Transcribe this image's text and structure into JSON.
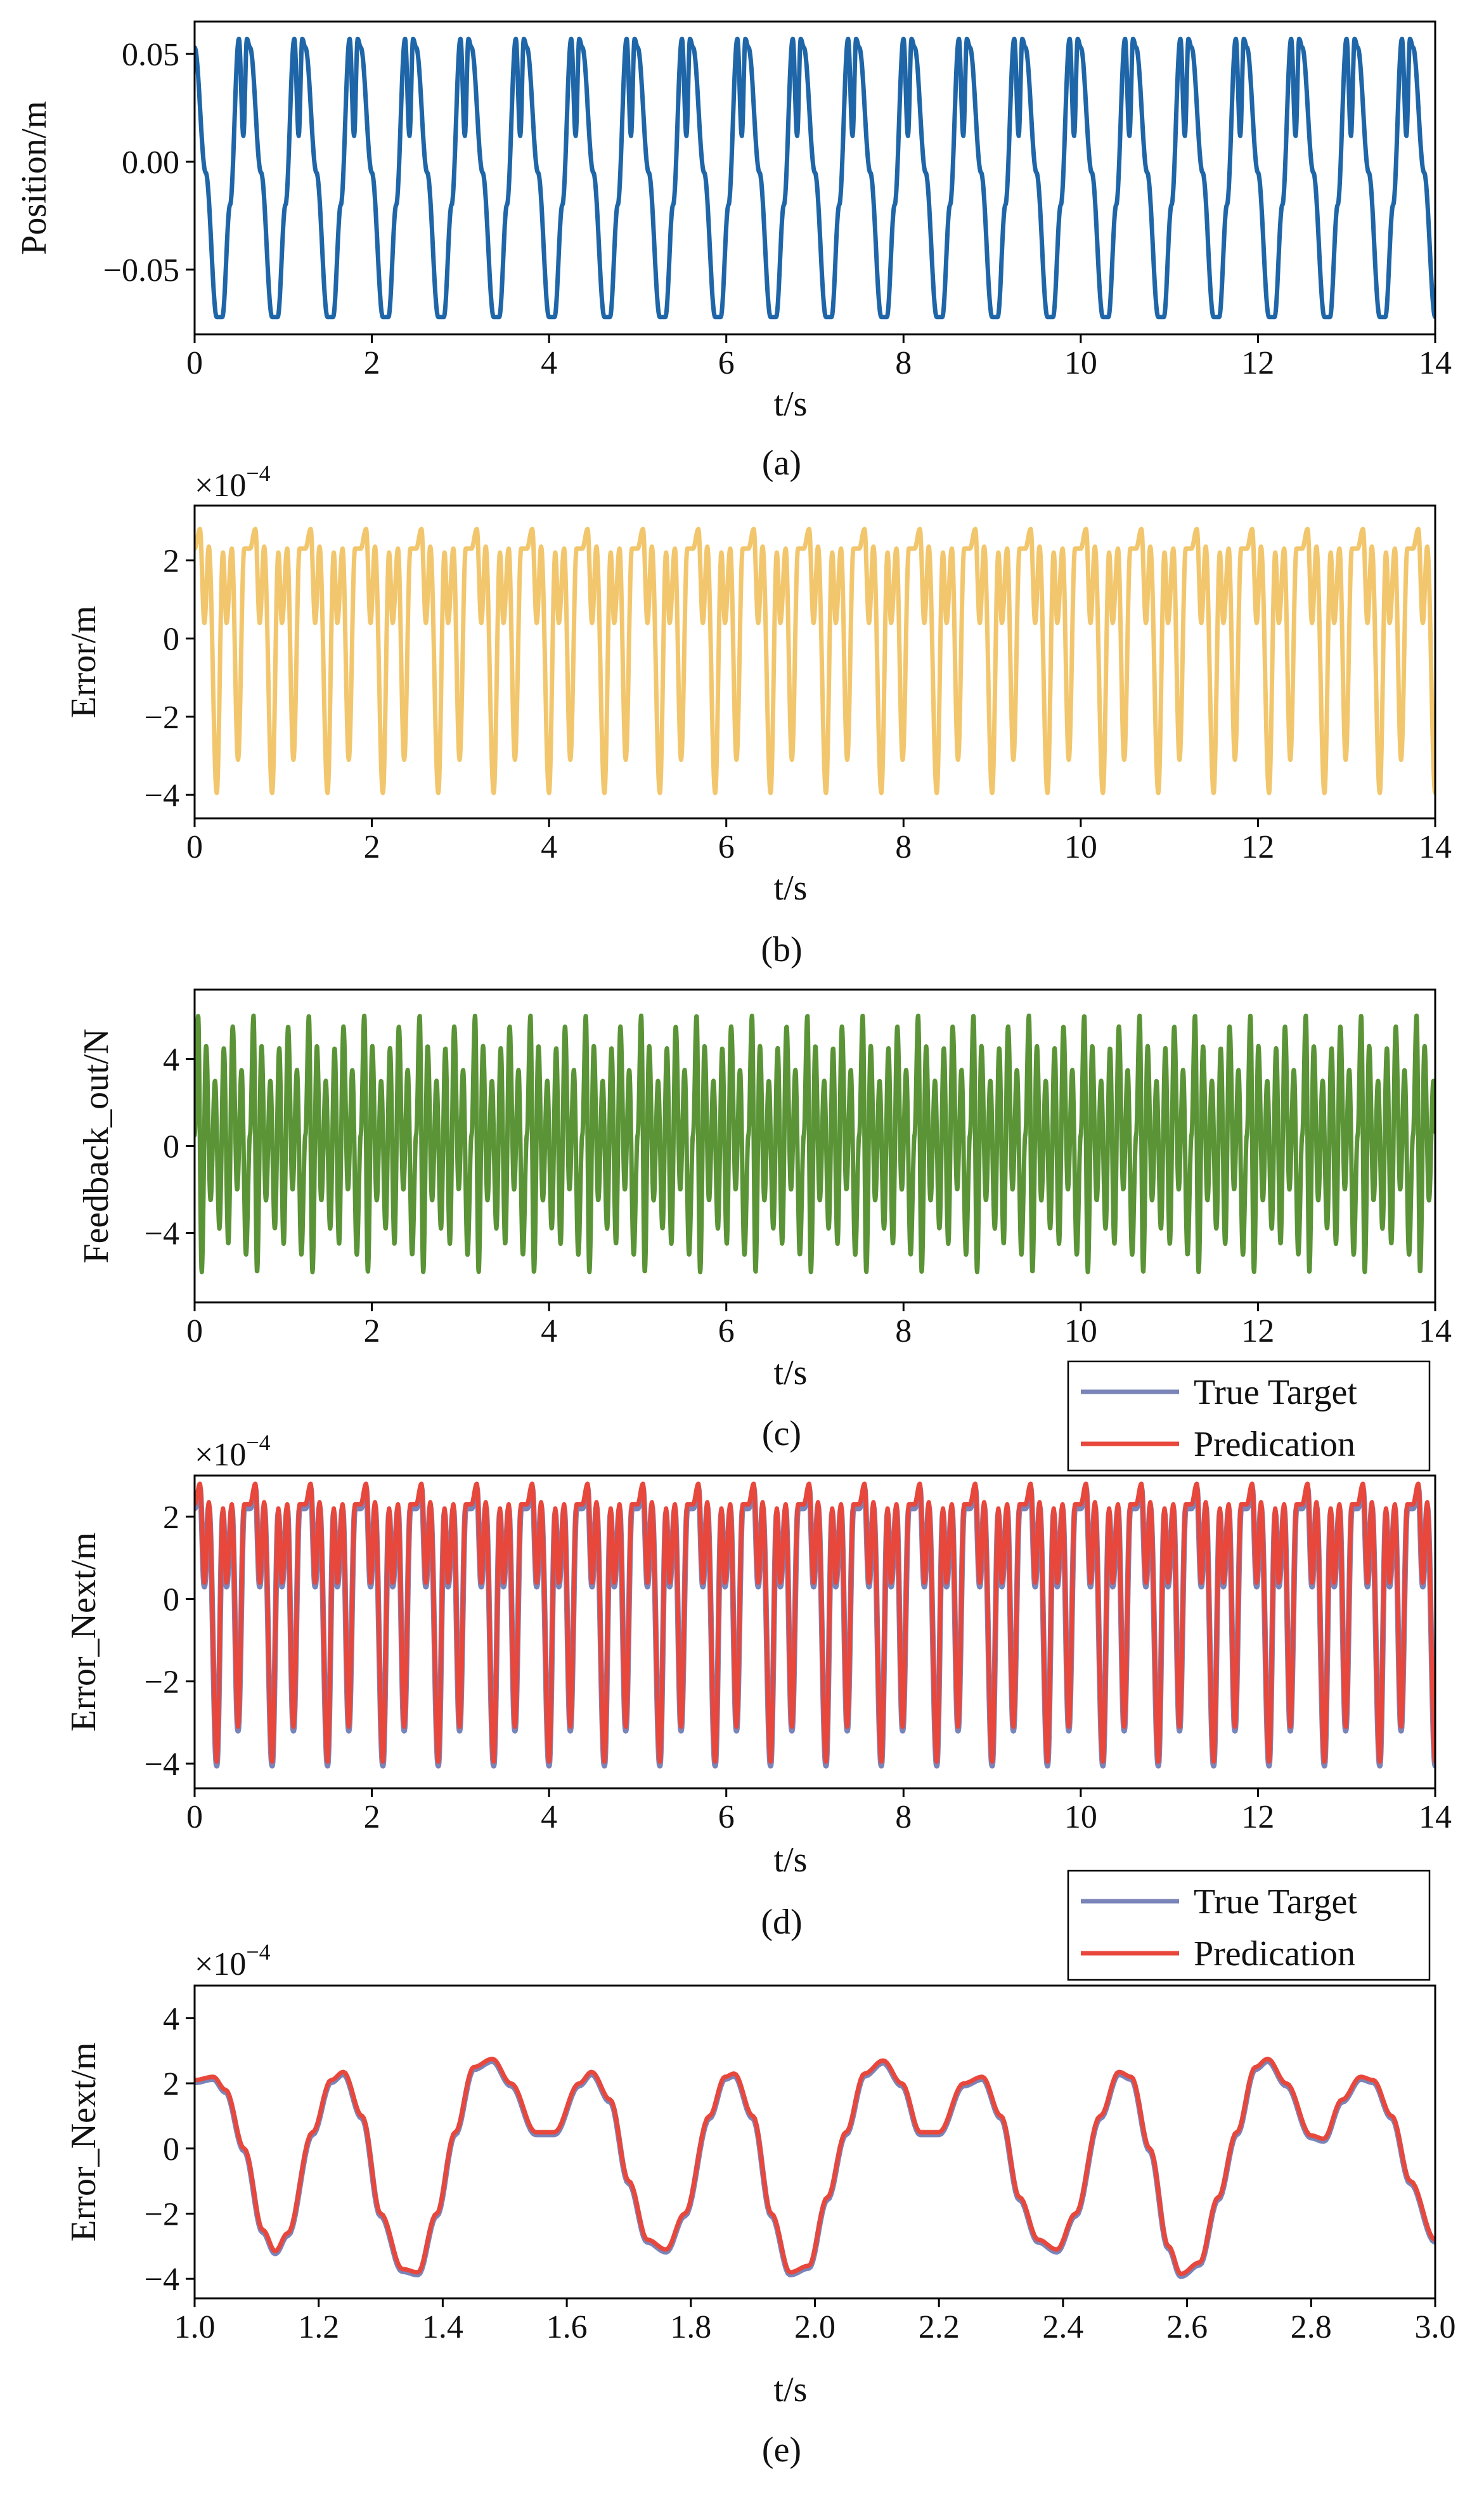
{
  "chart_data": [
    {
      "id": "a",
      "type": "line",
      "caption": "(a)",
      "xlabel": "t/s",
      "ylabel": "Position/m",
      "xlim": [
        0,
        14
      ],
      "ylim": [
        -0.08,
        0.065
      ],
      "xticks": [
        0,
        2,
        4,
        6,
        8,
        10,
        12,
        14
      ],
      "xtick_labels": [
        "0",
        "2",
        "4",
        "6",
        "8",
        "10",
        "12",
        "14"
      ],
      "yticks": [
        -0.05,
        0.0,
        0.05
      ],
      "ytick_labels": [
        "−0.05",
        "0.00",
        "0.05"
      ],
      "exponent": null,
      "legend": null,
      "waveform": {
        "period": 0.625,
        "extrema": [
          [
            0.0,
            0.053
          ],
          [
            0.125,
            -0.005
          ],
          [
            0.25,
            -0.072
          ],
          [
            0.3125,
            -0.072
          ],
          [
            0.4,
            -0.02
          ],
          [
            0.5,
            0.057
          ],
          [
            0.55,
            0.012
          ],
          [
            0.59,
            0.057
          ],
          [
            0.625,
            0.053
          ]
        ]
      },
      "series": [
        {
          "name": "Position",
          "color": "#1f66a8",
          "sample_step": 0.005
        }
      ]
    },
    {
      "id": "b",
      "type": "line",
      "caption": "(b)",
      "xlabel": "t/s",
      "ylabel": "Error/m",
      "xlim": [
        0,
        14
      ],
      "ylim": [
        -4.6,
        3.4
      ],
      "xticks": [
        0,
        2,
        4,
        6,
        8,
        10,
        12,
        14
      ],
      "xtick_labels": [
        "0",
        "2",
        "4",
        "6",
        "8",
        "10",
        "12",
        "14"
      ],
      "yticks": [
        -4,
        -2,
        0,
        2
      ],
      "ytick_labels": [
        "−4",
        "−2",
        "0",
        "2"
      ],
      "exponent": {
        "base": "×10",
        "power": "−4"
      },
      "legend": null,
      "waveform": {
        "period": 0.625,
        "extrema": [
          [
            0.0,
            2.3
          ],
          [
            0.06,
            2.8
          ],
          [
            0.11,
            0.4
          ],
          [
            0.16,
            2.35
          ],
          [
            0.25,
            -3.95
          ],
          [
            0.32,
            2.2
          ],
          [
            0.36,
            0.4
          ],
          [
            0.42,
            2.3
          ],
          [
            0.49,
            -3.1
          ],
          [
            0.56,
            2.3
          ],
          [
            0.625,
            2.3
          ]
        ]
      },
      "series": [
        {
          "name": "Error",
          "color": "#f2c66d",
          "sample_step": 0.005
        }
      ]
    },
    {
      "id": "c",
      "type": "line",
      "caption": "(c)",
      "xlabel": "t/s",
      "ylabel": "Feedback_out/N",
      "xlim": [
        0,
        14
      ],
      "ylim": [
        -7.2,
        7.2
      ],
      "xticks": [
        0,
        2,
        4,
        6,
        8,
        10,
        12,
        14
      ],
      "xtick_labels": [
        "0",
        "2",
        "4",
        "6",
        "8",
        "10",
        "12",
        "14"
      ],
      "yticks": [
        -4,
        0,
        4
      ],
      "ytick_labels": [
        "−4",
        "0",
        "4"
      ],
      "exponent": null,
      "legend": null,
      "waveform": {
        "period": 0.625,
        "extrema": [
          [
            0.0,
            0.5
          ],
          [
            0.04,
            6.0
          ],
          [
            0.08,
            -5.8
          ],
          [
            0.13,
            4.6
          ],
          [
            0.18,
            -2.5
          ],
          [
            0.23,
            3.0
          ],
          [
            0.28,
            -3.8
          ],
          [
            0.33,
            4.5
          ],
          [
            0.38,
            -4.5
          ],
          [
            0.43,
            5.5
          ],
          [
            0.48,
            -2.0
          ],
          [
            0.53,
            3.5
          ],
          [
            0.58,
            -5.0
          ],
          [
            0.625,
            0.5
          ]
        ]
      },
      "series": [
        {
          "name": "Feedback_out",
          "color": "#5a9436",
          "sample_step": 0.0035
        }
      ]
    },
    {
      "id": "d",
      "type": "line",
      "caption": "(d)",
      "xlabel": "t/s",
      "ylabel": "Error_Next/m",
      "xlim": [
        0,
        14
      ],
      "ylim": [
        -4.6,
        3.0
      ],
      "xticks": [
        0,
        2,
        4,
        6,
        8,
        10,
        12,
        14
      ],
      "xtick_labels": [
        "0",
        "2",
        "4",
        "6",
        "8",
        "10",
        "12",
        "14"
      ],
      "yticks": [
        -4,
        -2,
        0,
        2
      ],
      "ytick_labels": [
        "−4",
        "−2",
        "0",
        "2"
      ],
      "exponent": {
        "base": "×10",
        "power": "−4"
      },
      "legend": {
        "entries": [
          "True Target",
          "Predication"
        ],
        "placement": "above-right"
      },
      "waveform": {
        "period": 0.625,
        "extrema": [
          [
            0.0,
            2.3
          ],
          [
            0.06,
            2.8
          ],
          [
            0.11,
            0.4
          ],
          [
            0.16,
            2.35
          ],
          [
            0.25,
            -3.95
          ],
          [
            0.32,
            2.2
          ],
          [
            0.36,
            0.4
          ],
          [
            0.42,
            2.3
          ],
          [
            0.49,
            -3.1
          ],
          [
            0.56,
            2.3
          ],
          [
            0.625,
            2.3
          ]
        ]
      },
      "series": [
        {
          "name": "True Target",
          "color": "#7a84b8",
          "sample_step": 0.005,
          "offset": -0.1
        },
        {
          "name": "Predication",
          "color": "#e8473c",
          "sample_step": 0.005,
          "offset": 0
        }
      ]
    },
    {
      "id": "e",
      "type": "line",
      "caption": "(e)",
      "xlabel": "t/s",
      "ylabel": "Error_Next/m",
      "xlim": [
        1.0,
        3.0
      ],
      "ylim": [
        -4.6,
        5.0
      ],
      "xticks": [
        1.0,
        1.2,
        1.4,
        1.6,
        1.8,
        2.0,
        2.2,
        2.4,
        2.6,
        2.8,
        3.0
      ],
      "xtick_labels": [
        "1.0",
        "1.2",
        "1.4",
        "1.6",
        "1.8",
        "2.0",
        "2.2",
        "2.4",
        "2.6",
        "2.8",
        "3.0"
      ],
      "yticks": [
        -4,
        -2,
        0,
        2,
        4
      ],
      "ytick_labels": [
        "−4",
        "−2",
        "0",
        "2",
        "4"
      ],
      "exponent": {
        "base": "×10",
        "power": "−4"
      },
      "legend": {
        "entries": [
          "True Target",
          "Predication"
        ],
        "placement": "above-right"
      },
      "points": [
        [
          1.0,
          2.1
        ],
        [
          1.03,
          2.2
        ],
        [
          1.05,
          1.8
        ],
        [
          1.08,
          0.0
        ],
        [
          1.11,
          -2.5
        ],
        [
          1.13,
          -3.15
        ],
        [
          1.15,
          -2.6
        ],
        [
          1.19,
          0.5
        ],
        [
          1.22,
          2.1
        ],
        [
          1.24,
          2.35
        ],
        [
          1.27,
          1.0
        ],
        [
          1.3,
          -2.0
        ],
        [
          1.335,
          -3.7
        ],
        [
          1.36,
          -3.8
        ],
        [
          1.39,
          -2.0
        ],
        [
          1.42,
          0.5
        ],
        [
          1.45,
          2.5
        ],
        [
          1.48,
          2.75
        ],
        [
          1.51,
          2.0
        ],
        [
          1.55,
          0.5
        ],
        [
          1.58,
          0.5
        ],
        [
          1.62,
          2.0
        ],
        [
          1.64,
          2.35
        ],
        [
          1.67,
          1.5
        ],
        [
          1.7,
          -1.0
        ],
        [
          1.73,
          -2.8
        ],
        [
          1.76,
          -3.1
        ],
        [
          1.79,
          -2.0
        ],
        [
          1.83,
          1.0
        ],
        [
          1.855,
          2.2
        ],
        [
          1.87,
          2.3
        ],
        [
          1.9,
          1.0
        ],
        [
          1.93,
          -2.0
        ],
        [
          1.96,
          -3.8
        ],
        [
          1.99,
          -3.6
        ],
        [
          2.02,
          -1.5
        ],
        [
          2.05,
          0.5
        ],
        [
          2.08,
          2.3
        ],
        [
          2.11,
          2.7
        ],
        [
          2.14,
          2.0
        ],
        [
          2.17,
          0.5
        ],
        [
          2.2,
          0.5
        ],
        [
          2.24,
          2.0
        ],
        [
          2.27,
          2.2
        ],
        [
          2.3,
          1.0
        ],
        [
          2.33,
          -1.5
        ],
        [
          2.36,
          -2.8
        ],
        [
          2.39,
          -3.1
        ],
        [
          2.42,
          -2.0
        ],
        [
          2.46,
          1.0
        ],
        [
          2.49,
          2.35
        ],
        [
          2.51,
          2.2
        ],
        [
          2.54,
          0.0
        ],
        [
          2.57,
          -3.0
        ],
        [
          2.59,
          -3.85
        ],
        [
          2.62,
          -3.5
        ],
        [
          2.65,
          -1.5
        ],
        [
          2.68,
          0.5
        ],
        [
          2.71,
          2.5
        ],
        [
          2.73,
          2.75
        ],
        [
          2.76,
          2.0
        ],
        [
          2.8,
          0.4
        ],
        [
          2.82,
          0.3
        ],
        [
          2.85,
          1.5
        ],
        [
          2.88,
          2.2
        ],
        [
          2.9,
          2.1
        ],
        [
          2.93,
          1.0
        ],
        [
          2.96,
          -1.0
        ],
        [
          3.0,
          -2.8
        ]
      ],
      "series": [
        {
          "name": "True Target",
          "color": "#7a84b8",
          "offset": -0.07
        },
        {
          "name": "Predication",
          "color": "#e8473c",
          "offset": 0
        }
      ]
    }
  ]
}
